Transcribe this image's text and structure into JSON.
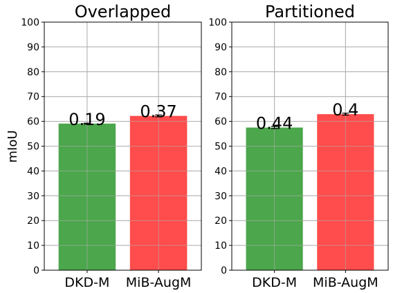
{
  "ylabel": "mIoU",
  "chart_data": [
    {
      "type": "bar",
      "title": "Overlapped",
      "categories": [
        "DKD-M",
        "MiB-AugM"
      ],
      "values": [
        59.1,
        62.2
      ],
      "errors": [
        0.19,
        0.37
      ],
      "data_labels": [
        "0.19",
        "0.37"
      ],
      "colors": [
        "#4ca64c",
        "#ff4c4c"
      ],
      "ylim": [
        0,
        100
      ],
      "yticks": [
        "0",
        "10",
        "20",
        "30",
        "40",
        "50",
        "60",
        "70",
        "80",
        "90",
        "100"
      ],
      "grid": true
    },
    {
      "type": "bar",
      "title": "Partitioned",
      "categories": [
        "DKD-M",
        "MiB-AugM"
      ],
      "values": [
        57.5,
        62.9
      ],
      "errors": [
        0.44,
        0.4
      ],
      "data_labels": [
        "0.44",
        "0.4"
      ],
      "colors": [
        "#4ca64c",
        "#ff4c4c"
      ],
      "ylim": [
        0,
        100
      ],
      "yticks": [
        "0",
        "10",
        "20",
        "30",
        "40",
        "50",
        "60",
        "70",
        "80",
        "90",
        "100"
      ],
      "grid": true
    }
  ]
}
